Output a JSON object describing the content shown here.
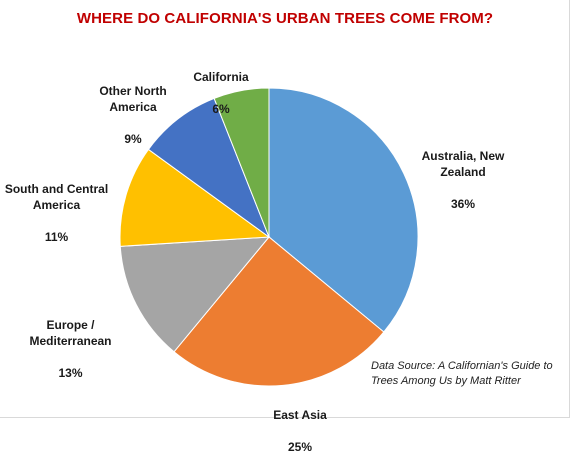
{
  "chart_data": {
    "type": "pie",
    "title": "WHERE DO CALIFORNIA'S URBAN TREES COME FROM?",
    "slices": [
      {
        "label": "Australia, New Zealand",
        "value": 36,
        "value_label": "36%",
        "color": "#5b9bd5"
      },
      {
        "label": "East Asia",
        "value": 25,
        "value_label": "25%",
        "color": "#ed7d31"
      },
      {
        "label": "Europe / Mediterranean",
        "value": 13,
        "value_label": "13%",
        "color": "#a5a5a5"
      },
      {
        "label": "South and Central America",
        "value": 11,
        "value_label": "11%",
        "color": "#ffc000"
      },
      {
        "label": "Other North America",
        "value": 9,
        "value_label": "9%",
        "color": "#4472c4"
      },
      {
        "label": "California",
        "value": 6,
        "value_label": "6%",
        "color": "#70ad47"
      }
    ],
    "start_angle": "12 o'clock",
    "direction": "clockwise"
  },
  "source_note": "Data Source: A Californian's Guide to Trees Among Us by Matt Ritter"
}
